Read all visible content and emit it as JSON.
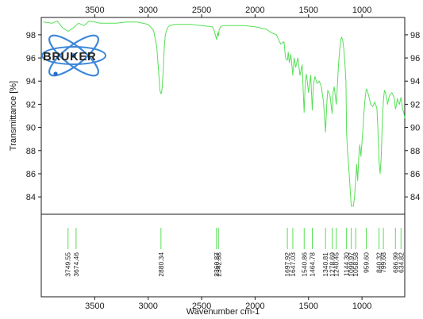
{
  "chart_data": {
    "type": "line",
    "logo_text": "BRUKER",
    "xlabel": "Wavenumber cm-1",
    "ylabel": "Transmittance [%]",
    "xlim": [
      4000,
      600
    ],
    "ylim": [
      82.5,
      99.5
    ],
    "x_ticks": [
      3500,
      3000,
      2500,
      2000,
      1500,
      1000
    ],
    "x_tick_labels": [
      "3500",
      "3000",
      "2500",
      "2000",
      "1500",
      "1000"
    ],
    "y_ticks": [
      84,
      86,
      88,
      90,
      92,
      94,
      96,
      98
    ],
    "y_tick_labels": [
      "84",
      "86",
      "88",
      "90",
      "92",
      "94",
      "96",
      "98"
    ],
    "series": [
      {
        "color": "#55e055",
        "x": [
          3980,
          3900,
          3850,
          3800,
          3750,
          3700,
          3650,
          3600,
          3550,
          3500,
          3450,
          3400,
          3300,
          3200,
          3100,
          3000,
          2950,
          2920,
          2900,
          2890,
          2880,
          2870,
          2860,
          2850,
          2840,
          2820,
          2800,
          2750,
          2700,
          2600,
          2500,
          2400,
          2380,
          2360,
          2350,
          2343,
          2335,
          2320,
          2300,
          2200,
          2100,
          2000,
          1900,
          1850,
          1800,
          1760,
          1730,
          1715,
          1698,
          1690,
          1680,
          1665,
          1647,
          1635,
          1620,
          1600,
          1580,
          1560,
          1541,
          1530,
          1520,
          1500,
          1480,
          1465,
          1455,
          1440,
          1420,
          1400,
          1380,
          1360,
          1341,
          1330,
          1320,
          1300,
          1279,
          1270,
          1260,
          1240,
          1230,
          1220,
          1210,
          1200,
          1190,
          1180,
          1170,
          1160,
          1150,
          1144,
          1135,
          1120,
          1100,
          1080,
          1070,
          1059,
          1050,
          1040,
          1030,
          1020,
          1010,
          1000,
          990,
          980,
          970,
          960,
          950,
          940,
          930,
          920,
          900,
          880,
          860,
          850,
          840,
          830,
          820,
          810,
          800,
          790,
          780,
          770,
          760,
          750,
          740,
          720,
          700,
          687,
          680,
          670,
          660,
          650,
          640,
          635,
          620,
          610,
          600
        ],
        "y": [
          99.1,
          99.0,
          99.2,
          98.6,
          98.3,
          98.6,
          99.0,
          98.8,
          99.2,
          99.1,
          99.0,
          99.0,
          99.0,
          99.1,
          99.1,
          98.9,
          98.4,
          97.0,
          94.5,
          93.2,
          92.9,
          93.3,
          94.8,
          96.8,
          98.0,
          98.6,
          98.8,
          98.9,
          98.9,
          98.9,
          98.8,
          98.7,
          98.3,
          97.6,
          98.2,
          97.9,
          98.5,
          98.7,
          98.8,
          98.8,
          98.8,
          98.7,
          98.5,
          98.2,
          98.0,
          97.2,
          97.4,
          96.0,
          95.8,
          96.5,
          95.6,
          96.3,
          94.5,
          96.0,
          95.2,
          96.0,
          94.5,
          95.4,
          91.3,
          94.0,
          94.6,
          93.0,
          94.5,
          91.5,
          93.6,
          94.4,
          93.8,
          94.0,
          93.5,
          92.2,
          89.6,
          92.0,
          93.2,
          92.8,
          91.2,
          93.0,
          93.5,
          92.0,
          93.6,
          95.4,
          96.5,
          97.5,
          97.8,
          97.5,
          96.8,
          95.5,
          94.0,
          89.5,
          88.0,
          86.0,
          83.2,
          83.2,
          84.0,
          85.5,
          86.8,
          85.4,
          87.5,
          88.5,
          87.5,
          88.7,
          90.0,
          91.5,
          92.6,
          93.3,
          93.2,
          92.8,
          92.5,
          92.0,
          91.8,
          92.2,
          91.6,
          89.6,
          87.0,
          86.0,
          87.5,
          90.5,
          92.3,
          93.2,
          93.0,
          92.5,
          92.0,
          92.5,
          92.8,
          93.0,
          92.6,
          91.6,
          91.8,
          92.5,
          92.2,
          92.0,
          92.4,
          92.6,
          91.6,
          91.3,
          90.8
        ]
      }
    ],
    "peak_lines": [
      3749.55,
      3674.46,
      2880.34,
      2360.87,
      2342.68,
      1697.92,
      1647.03,
      1540.86,
      1464.78,
      1340.81,
      1278.69,
      1240.45,
      1144.3,
      1099.97,
      1058.58,
      959.6,
      840.32,
      799.68,
      686.99,
      634.82
    ],
    "peak_labels": [
      "3749.55",
      "3674.46",
      "2880.34",
      "2360.87",
      "2342.68",
      "1697.92",
      "1647.03",
      "1540.86",
      "1464.78",
      "1340.81",
      "1278.69",
      "1240.45",
      "1144.30",
      "1099.97",
      "1058.58",
      "959.60",
      "840.32",
      "799.68",
      "686.99",
      "634.82"
    ]
  }
}
